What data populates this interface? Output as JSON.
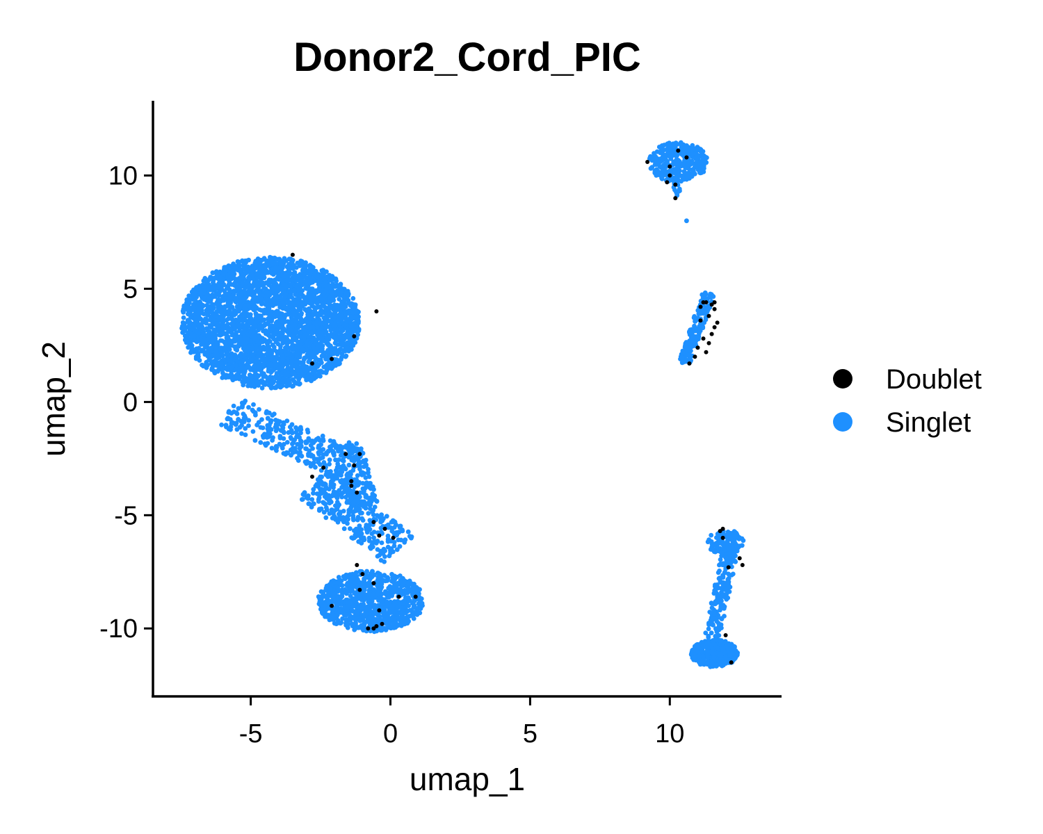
{
  "chart_data": {
    "type": "scatter",
    "title": "Donor2_Cord_PIC",
    "xlabel": "umap_1",
    "ylabel": "umap_2",
    "xlim": [
      -8.5,
      14
    ],
    "ylim": [
      -13,
      13.3
    ],
    "x_ticks": [
      -5,
      0,
      5,
      10
    ],
    "x_tick_labels": [
      "-5",
      "0",
      "5",
      "10"
    ],
    "y_ticks": [
      -10,
      -5,
      0,
      5,
      10
    ],
    "y_tick_labels": [
      "-10",
      "-5",
      "0",
      "5",
      "10"
    ],
    "grid": false,
    "legend_position": "right",
    "series": [
      {
        "name": "Singlet",
        "color": "#1E90FF",
        "clusters": [
          {
            "shape": "ellipse",
            "center": [
              -4.3,
              3.5
            ],
            "radius": [
              3.2,
              2.9
            ],
            "n": 3200
          },
          {
            "shape": "ellipse",
            "center": [
              -0.7,
              -8.8
            ],
            "radius": [
              1.9,
              1.35
            ],
            "n": 900
          },
          {
            "shape": "segment",
            "from": [
              -5.8,
              -0.4
            ],
            "to": [
              -1.5,
              -2.8
            ],
            "width": 0.7,
            "n": 260
          },
          {
            "shape": "segment",
            "from": [
              -1.6,
              -1.8
            ],
            "to": [
              -1.0,
              -4.6
            ],
            "width": 0.55,
            "n": 200
          },
          {
            "shape": "segment",
            "from": [
              -2.8,
              -3.6
            ],
            "to": [
              0.3,
              -6.5
            ],
            "width": 0.8,
            "n": 320
          },
          {
            "shape": "ellipse",
            "center": [
              10.3,
              10.6
            ],
            "radius": [
              1.05,
              0.9
            ],
            "n": 330
          },
          {
            "shape": "segment",
            "from": [
              10.2,
              10.0
            ],
            "to": [
              10.3,
              9.0
            ],
            "width": 0.15,
            "n": 12
          },
          {
            "shape": "segment",
            "from": [
              11.4,
              4.8
            ],
            "to": [
              10.5,
              1.7
            ],
            "width": 0.22,
            "n": 150
          },
          {
            "shape": "ellipse",
            "center": [
              12.0,
              -6.2
            ],
            "radius": [
              0.65,
              0.55
            ],
            "n": 120
          },
          {
            "shape": "segment",
            "from": [
              12.2,
              -6.3
            ],
            "to": [
              11.5,
              -10.5
            ],
            "width": 0.28,
            "n": 170
          },
          {
            "shape": "ellipse",
            "center": [
              11.6,
              -11.1
            ],
            "radius": [
              0.85,
              0.6
            ],
            "n": 330
          }
        ],
        "isolated_points": [
          [
            10.6,
            8.0
          ]
        ]
      },
      {
        "name": "Doublet",
        "color": "#000000",
        "points": [
          [
            -3.5,
            6.5
          ],
          [
            -1.3,
            2.9
          ],
          [
            -2.1,
            1.9
          ],
          [
            -2.8,
            1.7
          ],
          [
            -0.5,
            4.0
          ],
          [
            -1.6,
            -2.3
          ],
          [
            -2.4,
            -2.9
          ],
          [
            -2.8,
            -3.3
          ],
          [
            -1.4,
            -3.5
          ],
          [
            -1.4,
            -3.7
          ],
          [
            -1.1,
            -2.3
          ],
          [
            -1.3,
            -2.8
          ],
          [
            -1.2,
            -4.0
          ],
          [
            -0.6,
            -5.3
          ],
          [
            -0.2,
            -5.6
          ],
          [
            0.1,
            -6.0
          ],
          [
            -0.4,
            -5.9
          ],
          [
            -1.2,
            -7.2
          ],
          [
            -1.0,
            -7.6
          ],
          [
            -0.6,
            -8.0
          ],
          [
            -1.1,
            -8.3
          ],
          [
            -2.1,
            -9.0
          ],
          [
            -0.4,
            -9.2
          ],
          [
            -0.3,
            -9.8
          ],
          [
            -0.5,
            -9.9
          ],
          [
            0.3,
            -8.6
          ],
          [
            0.9,
            -8.6
          ],
          [
            -0.8,
            -10.0
          ],
          [
            -0.6,
            -10.0
          ],
          [
            9.2,
            10.6
          ],
          [
            10.0,
            10.4
          ],
          [
            10.0,
            10.0
          ],
          [
            9.9,
            9.7
          ],
          [
            10.2,
            9.6
          ],
          [
            10.6,
            10.8
          ],
          [
            10.3,
            11.1
          ],
          [
            10.2,
            9.0
          ],
          [
            11.2,
            4.4
          ],
          [
            11.3,
            4.4
          ],
          [
            11.5,
            4.3
          ],
          [
            11.1,
            4.2
          ],
          [
            11.6,
            4.1
          ],
          [
            11.4,
            3.8
          ],
          [
            11.7,
            3.5
          ],
          [
            11.6,
            3.3
          ],
          [
            11.5,
            3.0
          ],
          [
            11.2,
            2.8
          ],
          [
            11.0,
            2.4
          ],
          [
            11.3,
            2.2
          ],
          [
            10.9,
            2.0
          ],
          [
            11.6,
            4.4
          ],
          [
            11.1,
            3.6
          ],
          [
            10.7,
            1.7
          ],
          [
            11.4,
            2.6
          ],
          [
            11.9,
            -5.6
          ],
          [
            11.8,
            -5.7
          ],
          [
            11.9,
            -6.0
          ],
          [
            12.5,
            -6.9
          ],
          [
            12.6,
            -7.2
          ],
          [
            12.1,
            -7.3
          ],
          [
            12.0,
            -10.3
          ],
          [
            12.2,
            -11.5
          ]
        ]
      }
    ]
  },
  "legend": {
    "items": [
      {
        "label": "Doublet",
        "color": "#000000"
      },
      {
        "label": "Singlet",
        "color": "#1E90FF"
      }
    ]
  }
}
